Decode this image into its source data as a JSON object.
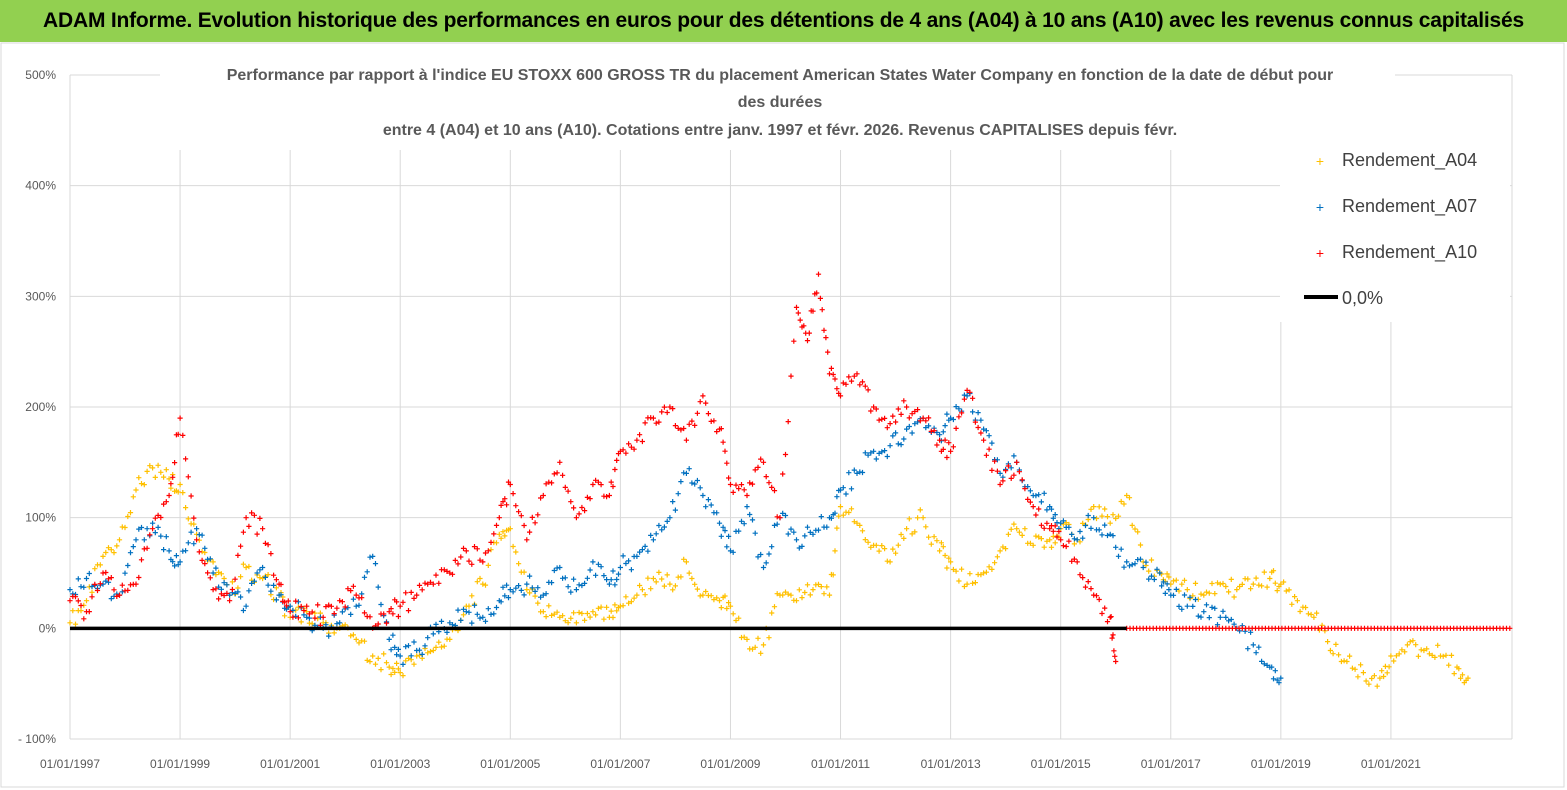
{
  "banner": {
    "title": "ADAM Informe. Evolution historique des performances en euros pour des détentions de 4 ans (A04) à 10 ans (A10) avec les revenus connus capitalisés"
  },
  "colors": {
    "banner": "#92d050",
    "A04": "#ffc000",
    "A07": "#0070c0",
    "A10": "#ff0000",
    "zero": "#000000",
    "grid": "#d9d9d9"
  },
  "chart_data": {
    "type": "scatter",
    "title_lines": [
      "Performance par rapport à l'indice EU STOXX 600 GROSS TR  du placement American States Water Company en fonction de la date de début pour",
      "des durées",
      "entre 4 (A04) et 10 ans (A10). Cotations entre janv. 1997 et févr. 2026. Revenus CAPITALISES depuis févr."
    ],
    "ylim": [
      -100,
      500
    ],
    "y_ticks": [
      "500%",
      "400%",
      "300%",
      "200%",
      "100%",
      "0%",
      "- 100%"
    ],
    "y_tick_values": [
      500,
      400,
      300,
      200,
      100,
      0,
      -100
    ],
    "x_ticks": [
      "01/01/1997",
      "01/01/1999",
      "01/01/2001",
      "01/01/2003",
      "01/01/2005",
      "01/01/2007",
      "01/01/2009",
      "01/01/2011",
      "01/01/2013",
      "01/01/2015",
      "01/01/2017",
      "01/01/2019",
      "01/01/2021"
    ],
    "x_tick_years": [
      1997,
      1999,
      2001,
      2003,
      2005,
      2007,
      2009,
      2011,
      2013,
      2015,
      2017,
      2019,
      2021
    ],
    "xlim": [
      1997.0,
      2023.2
    ],
    "legend": [
      "Rendement_A04",
      "Rendement_A07",
      "Rendement_A10",
      "0,0%"
    ],
    "series": [
      {
        "name": "Rendement_A04",
        "marker": "+",
        "x": [
          1997.0,
          1997.3,
          1997.6,
          1997.9,
          1998.2,
          1998.5,
          1998.8,
          1999.0,
          1999.3,
          1999.6,
          1999.9,
          2000.2,
          2000.5,
          2000.8,
          2001.0,
          2001.3,
          2001.6,
          2001.9,
          2002.2,
          2002.5,
          2002.8,
          2003.0,
          2003.3,
          2003.6,
          2003.9,
          2004.2,
          2004.5,
          2004.8,
          2005.0,
          2005.3,
          2005.6,
          2005.9,
          2006.2,
          2006.5,
          2006.8,
          2007.0,
          2007.3,
          2007.6,
          2007.9,
          2008.2,
          2008.5,
          2008.8,
          2009.0,
          2009.3,
          2009.6,
          2009.9,
          2010.2,
          2010.5,
          2010.8,
          2011.0,
          2011.3,
          2011.6,
          2011.9,
          2012.2,
          2012.5,
          2012.8,
          2013.0,
          2013.3,
          2013.6,
          2013.9,
          2014.2,
          2014.5,
          2014.8,
          2015.0,
          2015.3,
          2015.6,
          2015.9,
          2016.2,
          2016.5,
          2016.8,
          2017.0,
          2017.3,
          2017.6,
          2017.9,
          2018.2,
          2018.5,
          2018.8,
          2019.0,
          2019.3,
          2019.6,
          2019.9,
          2020.2,
          2020.5,
          2020.8,
          2021.0,
          2021.3,
          2021.6,
          2021.9,
          2022.2,
          2022.4
        ],
        "y": [
          5,
          25,
          65,
          80,
          125,
          145,
          135,
          130,
          85,
          60,
          30,
          55,
          45,
          30,
          10,
          15,
          5,
          0,
          -10,
          -25,
          -35,
          -40,
          -25,
          -20,
          -10,
          20,
          40,
          85,
          90,
          35,
          15,
          10,
          5,
          15,
          10,
          20,
          30,
          45,
          40,
          60,
          30,
          25,
          20,
          -10,
          -15,
          30,
          25,
          35,
          30,
          110,
          95,
          75,
          60,
          90,
          100,
          70,
          60,
          40,
          50,
          70,
          90,
          75,
          80,
          90,
          80,
          110,
          95,
          120,
          60,
          50,
          40,
          35,
          30,
          40,
          35,
          40,
          45,
          40,
          25,
          10,
          -20,
          -30,
          -40,
          -45,
          -25,
          -15,
          -20,
          -25,
          -35,
          -45
        ]
      },
      {
        "name": "Rendement_A07",
        "marker": "+",
        "x": [
          1997.0,
          1997.3,
          1997.6,
          1997.9,
          1998.2,
          1998.5,
          1998.8,
          1999.0,
          1999.3,
          1999.6,
          1999.9,
          2000.2,
          2000.5,
          2000.8,
          2001.0,
          2001.3,
          2001.6,
          2001.9,
          2002.2,
          2002.5,
          2002.8,
          2003.0,
          2003.3,
          2003.6,
          2003.9,
          2004.2,
          2004.5,
          2004.8,
          2005.0,
          2005.3,
          2005.6,
          2005.9,
          2006.2,
          2006.5,
          2006.8,
          2007.0,
          2007.3,
          2007.6,
          2007.9,
          2008.2,
          2008.5,
          2008.8,
          2009.0,
          2009.3,
          2009.6,
          2009.9,
          2010.2,
          2010.5,
          2010.8,
          2011.0,
          2011.3,
          2011.6,
          2011.9,
          2012.2,
          2012.5,
          2012.8,
          2013.0,
          2013.3,
          2013.6,
          2013.9,
          2014.2,
          2014.5,
          2014.8,
          2015.0,
          2015.3,
          2015.6,
          2015.9,
          2016.2,
          2016.5,
          2016.8,
          2017.0,
          2017.3,
          2017.6,
          2017.9,
          2018.2,
          2018.5,
          2018.8,
          2019.0
        ],
        "y": [
          35,
          45,
          40,
          30,
          80,
          95,
          70,
          60,
          90,
          50,
          30,
          20,
          55,
          30,
          20,
          10,
          0,
          5,
          20,
          65,
          -10,
          -25,
          -20,
          -5,
          5,
          15,
          10,
          25,
          35,
          40,
          30,
          55,
          35,
          60,
          40,
          55,
          65,
          80,
          100,
          140,
          120,
          95,
          70,
          110,
          55,
          100,
          80,
          85,
          100,
          125,
          140,
          160,
          165,
          180,
          190,
          175,
          190,
          210,
          180,
          140,
          150,
          120,
          110,
          95,
          80,
          100,
          85,
          60,
          55,
          50,
          30,
          20,
          15,
          10,
          0,
          -15,
          -35,
          -45
        ]
      },
      {
        "name": "Rendement_A10",
        "marker": "+",
        "x": [
          1997.0,
          1997.3,
          1997.6,
          1997.9,
          1998.2,
          1998.5,
          1998.8,
          1999.0,
          1999.3,
          1999.6,
          1999.9,
          2000.2,
          2000.5,
          2000.8,
          2001.0,
          2001.3,
          2001.6,
          2001.9,
          2002.2,
          2002.5,
          2002.8,
          2003.0,
          2003.3,
          2003.6,
          2003.9,
          2004.2,
          2004.5,
          2004.8,
          2005.0,
          2005.3,
          2005.6,
          2005.9,
          2006.2,
          2006.5,
          2006.8,
          2007.0,
          2007.3,
          2007.6,
          2007.9,
          2008.2,
          2008.5,
          2008.8,
          2009.0,
          2009.3,
          2009.6,
          2009.9,
          2010.2,
          2010.4,
          2010.6,
          2010.8,
          2011.0,
          2011.3,
          2011.6,
          2011.9,
          2012.2,
          2012.5,
          2012.8,
          2013.0,
          2013.3,
          2013.6,
          2013.9,
          2014.2,
          2014.5,
          2014.8,
          2015.0,
          2015.3,
          2015.6,
          2015.9,
          2016.0
        ],
        "y": [
          25,
          15,
          50,
          30,
          40,
          90,
          120,
          190,
          80,
          35,
          25,
          100,
          90,
          40,
          15,
          20,
          10,
          25,
          30,
          0,
          15,
          20,
          30,
          40,
          50,
          70,
          60,
          100,
          130,
          80,
          120,
          150,
          100,
          130,
          120,
          160,
          170,
          190,
          200,
          170,
          210,
          180,
          130,
          120,
          150,
          100,
          290,
          260,
          320,
          230,
          210,
          230,
          200,
          185,
          200,
          190,
          170,
          160,
          215,
          170,
          130,
          150,
          110,
          90,
          80,
          60,
          30,
          10,
          -30
        ]
      }
    ],
    "a10_zero_span": [
      2016.2,
      2023.2
    ],
    "zero_line": {
      "name": "0,0%",
      "value": 0,
      "x_range": [
        1997.0,
        2016.2
      ]
    }
  }
}
